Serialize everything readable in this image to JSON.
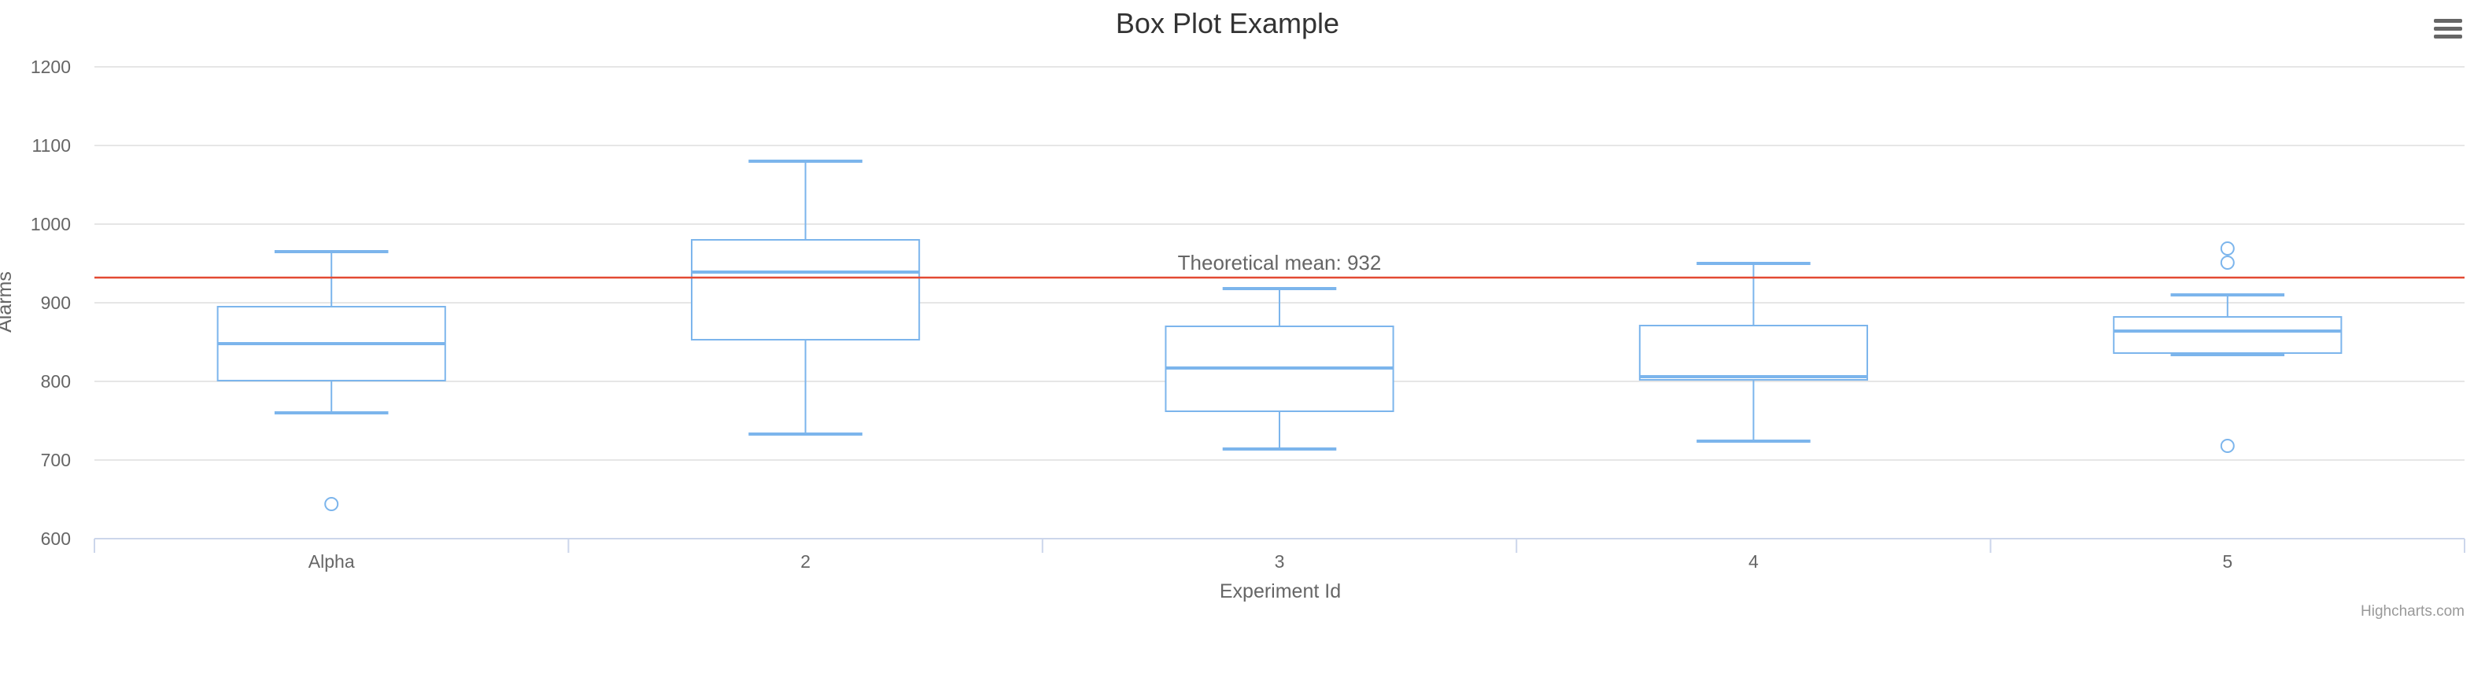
{
  "chart_data": {
    "type": "boxplot",
    "title": "Box Plot Example",
    "xlabel": "Experiment Id",
    "ylabel": "Alarms",
    "categories": [
      "Alpha",
      "2",
      "3",
      "4",
      "5"
    ],
    "ylim": [
      600,
      1200
    ],
    "yticks": [
      "600",
      "700",
      "800",
      "900",
      "1000",
      "1100",
      "1200"
    ],
    "grid": true,
    "legend": "none",
    "series": [
      {
        "boxes": [
          {
            "low": 760,
            "q1": 801,
            "median": 848,
            "q3": 895,
            "high": 965
          },
          {
            "low": 733,
            "q1": 853,
            "median": 939,
            "q3": 980,
            "high": 1080
          },
          {
            "low": 714,
            "q1": 762,
            "median": 817,
            "q3": 870,
            "high": 918
          },
          {
            "low": 724,
            "q1": 802,
            "median": 806,
            "q3": 871,
            "high": 950
          },
          {
            "low": 834,
            "q1": 836,
            "median": 864,
            "q3": 882,
            "high": 910
          }
        ],
        "outliers": [
          {
            "category": "Alpha",
            "value": 644
          },
          {
            "category": "5",
            "value": 718
          },
          {
            "category": "5",
            "value": 951
          },
          {
            "category": "5",
            "value": 969
          }
        ]
      }
    ],
    "plot_line": {
      "value": 932,
      "label": "Theoretical mean: 932",
      "color": "#e34a33"
    },
    "colors": {
      "series": "#7cb5ec",
      "grid": "#e6e6e6",
      "axis": "#ccd6eb"
    }
  },
  "credits": "Highcharts.com",
  "menu_icon": "hamburger-menu-icon"
}
